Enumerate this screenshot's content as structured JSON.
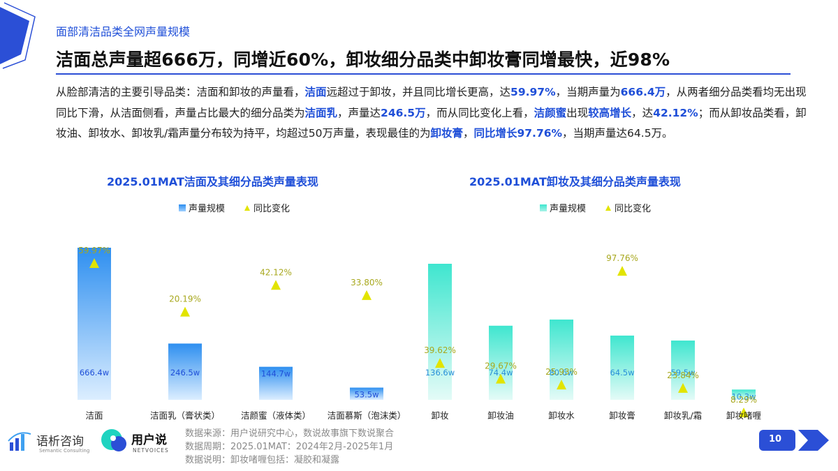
{
  "header": {
    "kicker": "面部清洁品类全网声量规模",
    "title": "洁面总声量超666万，同增近60%，卸妆细分品类中卸妆膏同增最快，近98%"
  },
  "summary": {
    "p1": "从脸部清洁的主要引导品类：洁面和卸妆的声量看，",
    "h1": "洁面",
    "p2": "远超过于卸妆，并且同比增长更高，达",
    "h2": "59.97%",
    "p3": "，当期声量为",
    "h3": "666.4万",
    "p4": "，从两者细分品类看均无出现同比下滑，从洁面侧看，声量占比最大的细分品类为",
    "h4": "洁面乳",
    "p5": "，声量达",
    "h5": "246.5万",
    "p6": "，而从同比变化上看，",
    "h6": "洁颜蜜",
    "p7": "出现",
    "h7": "较高增长",
    "p8": "，达",
    "h8": "42.12%",
    "p9": "；而从卸妆品类看，卸妆油、卸妆水、卸妆乳/霜声量分布较为持平，均超过50万声量，表现最佳的为",
    "h9": "卸妆膏",
    "p10": "，",
    "h10": "同比增长97.76%",
    "p11": "，当期声量达64.5万。"
  },
  "colors": {
    "accent": "#1f4fd8",
    "left_bar_top": "#2e8ff0",
    "left_bar_bottom": "#dceeff",
    "right_bar_top": "#3fe6cf",
    "right_bar_bottom": "#e4fbf7",
    "triangle": "#e2e400",
    "pct_label": "#a8a81e"
  },
  "chart_data": [
    {
      "type": "bar",
      "title": "2025.01MAT洁面及其细分品类声量表现",
      "legend": [
        "声量规模",
        "同比变化"
      ],
      "categories": [
        "洁面",
        "洁面乳（膏状类）",
        "洁颜蜜（液体类）",
        "洁面慕斯（泡沫类）"
      ],
      "series": [
        {
          "name": "声量规模",
          "unit": "w",
          "values": [
            666.4,
            246.5,
            144.7,
            53.5
          ],
          "labels": [
            "666.4w",
            "246.5w",
            "144.7w",
            "53.5w"
          ]
        },
        {
          "name": "同比变化",
          "unit": "%",
          "values": [
            59.97,
            20.19,
            42.12,
            33.8
          ],
          "labels": [
            "59.97%",
            "20.19%",
            "42.12%",
            "33.80%"
          ]
        }
      ]
    },
    {
      "type": "bar",
      "title": "2025.01MAT卸妆及其细分品类声量表现",
      "legend": [
        "声量规模",
        "同比变化"
      ],
      "categories": [
        "卸妆",
        "卸妆油",
        "卸妆水",
        "卸妆膏",
        "卸妆乳/霜",
        "卸妆啫喱"
      ],
      "series": [
        {
          "name": "声量规模",
          "unit": "w",
          "values": [
            136.6,
            74.4,
            80.6,
            64.5,
            59.5,
            10.3
          ],
          "labels": [
            "136.6w",
            "74.4w",
            "80.6w",
            "64.5w",
            "59.5w",
            "10.3w"
          ]
        },
        {
          "name": "同比变化",
          "unit": "%",
          "values": [
            39.62,
            29.67,
            25.93,
            97.76,
            23.84,
            8.29
          ],
          "labels": [
            "39.62%",
            "29.67%",
            "25.93%",
            "97.76%",
            "23.84%",
            "8.29%"
          ]
        }
      ]
    }
  ],
  "footer": {
    "source_1": "数据来源：用户说研究中心，数说故事旗下数说聚合",
    "source_2": "数据周期：2025.01MAT：2024年2月-2025年1月",
    "source_3": "数据说明：卸妆啫喱包括：凝胶和凝露",
    "logo_1": "语析咨询",
    "logo_1_sub": "Semantic Consulting",
    "logo_2": "用户说",
    "logo_2_sub": "NETVOICES",
    "page_number": "10"
  }
}
